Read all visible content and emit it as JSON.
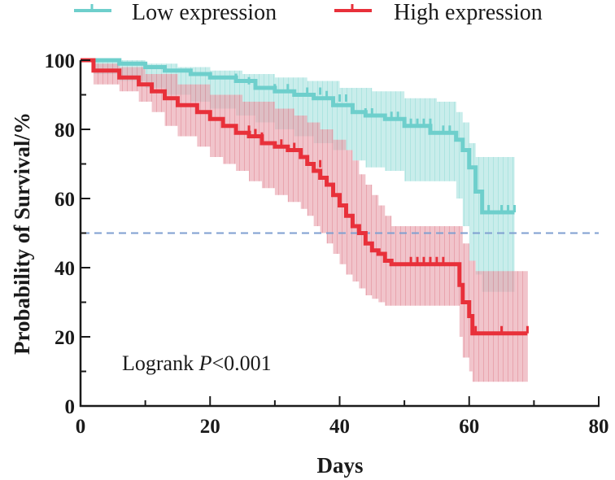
{
  "chart_data": {
    "type": "line",
    "subtype": "kaplan-meier",
    "title": "",
    "xlabel": "Days",
    "ylabel": "Probability of Survival/%",
    "xlim": [
      0,
      80
    ],
    "ylim": [
      0,
      100
    ],
    "xticks": [
      0,
      20,
      40,
      60,
      80
    ],
    "xminor": [
      10,
      30,
      50,
      70
    ],
    "yticks": [
      0,
      20,
      40,
      60,
      80,
      100
    ],
    "yminor": [
      10,
      30,
      50,
      70,
      90
    ],
    "grid": false,
    "legend_position": "top",
    "reference_line": {
      "y": 50,
      "style": "dashed",
      "color": "#7f9fd0"
    },
    "annotation": {
      "prefix": "Logrank ",
      "italic": "P",
      "suffix": "<0.001"
    },
    "series": [
      {
        "name": "Low expression",
        "color": "#6ecfcc",
        "band_color": "#9edfdc",
        "steps": [
          [
            0,
            100
          ],
          [
            2,
            100
          ],
          [
            6,
            99
          ],
          [
            10,
            98
          ],
          [
            13,
            97
          ],
          [
            17,
            96
          ],
          [
            20,
            95
          ],
          [
            24,
            94
          ],
          [
            27,
            92
          ],
          [
            30,
            91
          ],
          [
            33,
            90
          ],
          [
            36,
            89
          ],
          [
            39,
            87
          ],
          [
            42,
            85
          ],
          [
            44,
            84
          ],
          [
            47,
            83
          ],
          [
            50,
            81
          ],
          [
            54,
            79
          ],
          [
            58,
            77
          ],
          [
            59,
            74
          ],
          [
            60,
            69
          ],
          [
            61,
            62
          ],
          [
            62,
            56
          ],
          [
            67,
            56
          ]
        ],
        "upper": [
          [
            0,
            100
          ],
          [
            2,
            100
          ],
          [
            10,
            99
          ],
          [
            15,
            98
          ],
          [
            20,
            97
          ],
          [
            25,
            96
          ],
          [
            30,
            95
          ],
          [
            35,
            94
          ],
          [
            40,
            92
          ],
          [
            45,
            91
          ],
          [
            50,
            89
          ],
          [
            55,
            88
          ],
          [
            58,
            85
          ],
          [
            59,
            82
          ],
          [
            60,
            76
          ],
          [
            61,
            72
          ],
          [
            67,
            72
          ]
        ],
        "lower": [
          [
            0,
            100
          ],
          [
            2,
            96
          ],
          [
            6,
            94
          ],
          [
            10,
            92
          ],
          [
            13,
            90
          ],
          [
            17,
            88
          ],
          [
            20,
            86
          ],
          [
            24,
            84
          ],
          [
            27,
            82
          ],
          [
            30,
            80
          ],
          [
            33,
            78
          ],
          [
            36,
            76
          ],
          [
            39,
            74
          ],
          [
            42,
            71
          ],
          [
            44,
            69
          ],
          [
            47,
            68
          ],
          [
            50,
            65
          ],
          [
            54,
            65
          ],
          [
            58,
            60
          ],
          [
            59,
            52
          ],
          [
            60,
            42
          ],
          [
            61,
            38
          ],
          [
            62,
            33
          ],
          [
            67,
            33
          ]
        ],
        "censors": [
          [
            24,
            94
          ],
          [
            26,
            93
          ],
          [
            30,
            91
          ],
          [
            32,
            91
          ],
          [
            35,
            90
          ],
          [
            37,
            90
          ],
          [
            38,
            89
          ],
          [
            40,
            88
          ],
          [
            41,
            88
          ],
          [
            44,
            84
          ],
          [
            45,
            84
          ],
          [
            48,
            83
          ],
          [
            49,
            83
          ],
          [
            51,
            81
          ],
          [
            52,
            81
          ],
          [
            53,
            81
          ],
          [
            54,
            81
          ],
          [
            56,
            79
          ],
          [
            57,
            79
          ],
          [
            63,
            56
          ],
          [
            65,
            56
          ],
          [
            66,
            56
          ],
          [
            67,
            56
          ]
        ]
      },
      {
        "name": "High expression",
        "color": "#e8303a",
        "band_color": "#e89aa5",
        "steps": [
          [
            0,
            100
          ],
          [
            2,
            97
          ],
          [
            6,
            95
          ],
          [
            9,
            93
          ],
          [
            11,
            91
          ],
          [
            13,
            89
          ],
          [
            15,
            87
          ],
          [
            18,
            85
          ],
          [
            20,
            83
          ],
          [
            22,
            81
          ],
          [
            24,
            79
          ],
          [
            26,
            78
          ],
          [
            28,
            76
          ],
          [
            30,
            75
          ],
          [
            32,
            74
          ],
          [
            34,
            72
          ],
          [
            35,
            70
          ],
          [
            36,
            68
          ],
          [
            37,
            66
          ],
          [
            38,
            64
          ],
          [
            39,
            61
          ],
          [
            40,
            58
          ],
          [
            41,
            55
          ],
          [
            42,
            52
          ],
          [
            43,
            50
          ],
          [
            44,
            47
          ],
          [
            45,
            45
          ],
          [
            46,
            44
          ],
          [
            47,
            42
          ],
          [
            48,
            41
          ],
          [
            58,
            41
          ],
          [
            58.5,
            35
          ],
          [
            59,
            30
          ],
          [
            60,
            26
          ],
          [
            60.5,
            21
          ],
          [
            69,
            21
          ]
        ],
        "upper": [
          [
            0,
            100
          ],
          [
            2,
            99
          ],
          [
            6,
            98
          ],
          [
            10,
            96
          ],
          [
            15,
            93
          ],
          [
            20,
            90
          ],
          [
            25,
            88
          ],
          [
            30,
            86
          ],
          [
            33,
            84
          ],
          [
            35,
            82
          ],
          [
            37,
            80
          ],
          [
            39,
            77
          ],
          [
            41,
            74
          ],
          [
            42,
            71
          ],
          [
            43,
            67
          ],
          [
            44,
            64
          ],
          [
            45,
            61
          ],
          [
            46,
            58
          ],
          [
            47,
            55
          ],
          [
            48,
            52
          ],
          [
            58,
            52
          ],
          [
            59,
            47
          ],
          [
            60,
            42
          ],
          [
            61,
            39
          ],
          [
            69,
            39
          ]
        ],
        "lower": [
          [
            0,
            100
          ],
          [
            2,
            93
          ],
          [
            6,
            91
          ],
          [
            9,
            88
          ],
          [
            11,
            85
          ],
          [
            13,
            81
          ],
          [
            15,
            78
          ],
          [
            18,
            75
          ],
          [
            20,
            72
          ],
          [
            22,
            70
          ],
          [
            24,
            68
          ],
          [
            26,
            65
          ],
          [
            28,
            63
          ],
          [
            30,
            61
          ],
          [
            32,
            59
          ],
          [
            34,
            57
          ],
          [
            35,
            55
          ],
          [
            36,
            52
          ],
          [
            37,
            50
          ],
          [
            38,
            47
          ],
          [
            39,
            44
          ],
          [
            40,
            41
          ],
          [
            41,
            38
          ],
          [
            42,
            36
          ],
          [
            43,
            34
          ],
          [
            44,
            32
          ],
          [
            45,
            31
          ],
          [
            46,
            30
          ],
          [
            47,
            29
          ],
          [
            48,
            29
          ],
          [
            58,
            29
          ],
          [
            58.5,
            20
          ],
          [
            59,
            14
          ],
          [
            60,
            10
          ],
          [
            60.5,
            7
          ],
          [
            69,
            7
          ]
        ],
        "censors": [
          [
            26,
            79
          ],
          [
            27,
            78
          ],
          [
            28,
            77
          ],
          [
            31,
            75
          ],
          [
            33,
            74
          ],
          [
            37,
            69
          ],
          [
            39,
            62
          ],
          [
            42,
            53
          ],
          [
            44,
            48
          ],
          [
            51,
            41
          ],
          [
            52,
            41
          ],
          [
            53,
            41
          ],
          [
            54,
            41
          ],
          [
            55,
            41
          ],
          [
            56,
            41
          ],
          [
            61,
            21
          ],
          [
            65,
            21
          ],
          [
            69,
            21
          ]
        ]
      }
    ]
  }
}
